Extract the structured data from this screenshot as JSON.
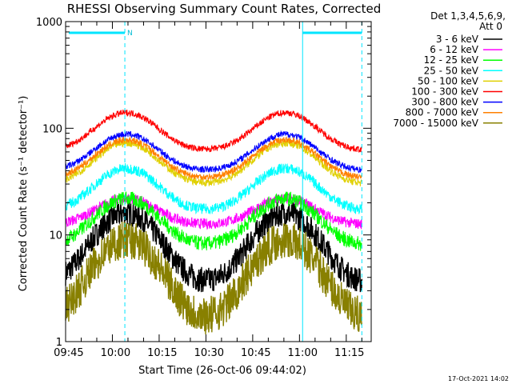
{
  "chart_data": {
    "type": "line",
    "title": "RHESSI Observing Summary Count Rates, Corrected",
    "xlabel": "Start Time (26-Oct-06 09:44:02)",
    "ylabel": "Corrected Count Rate (s⁻¹ detector⁻¹)",
    "yscale": "log",
    "ylim": [
      1,
      1000
    ],
    "xlim_minutes": [
      0,
      98
    ],
    "x_ticks": [
      "09:45",
      "10:00",
      "10:15",
      "10:30",
      "10:45",
      "11:00",
      "11:15"
    ],
    "y_ticks": [
      "1",
      "10",
      "100",
      "1000"
    ],
    "legend_header": [
      "Det 1,3,4,5,6,9,",
      "Att 0"
    ],
    "legend_position": "right",
    "timestamp": "17-Oct-2021 14:02",
    "annotations": {
      "night_bar_label": "N",
      "night_intervals_minutes": [
        [
          1,
          19
        ],
        [
          76,
          95
        ]
      ],
      "dashed_lines_minutes": [
        19,
        95
      ],
      "solid_lines_minutes": [
        0,
        76
      ]
    },
    "series": [
      {
        "name": "3 - 6 keV",
        "color": "#000000",
        "base": 3.5,
        "peak": 16,
        "noise": 0.12
      },
      {
        "name": "6 - 12 keV",
        "color": "#ff00ff",
        "base": 12.5,
        "peak": 22,
        "noise": 0.05
      },
      {
        "name": "12 - 25 keV",
        "color": "#00ff00",
        "base": 8,
        "peak": 22,
        "noise": 0.07
      },
      {
        "name": "25 - 50 keV",
        "color": "#00ffff",
        "base": 17,
        "peak": 42,
        "noise": 0.05
      },
      {
        "name": "50 - 100 keV",
        "color": "#e0d000",
        "base": 30,
        "peak": 73,
        "noise": 0.035
      },
      {
        "name": "100 - 300 keV",
        "color": "#ff0000",
        "base": 62,
        "peak": 140,
        "noise": 0.03
      },
      {
        "name": "300 - 800 keV",
        "color": "#0000ff",
        "base": 40,
        "peak": 88,
        "noise": 0.03
      },
      {
        "name": "800 - 7000 keV",
        "color": "#ff8000",
        "base": 34,
        "peak": 78,
        "noise": 0.03
      },
      {
        "name": "7000 - 15000 keV",
        "color": "#888000",
        "base": 1.6,
        "peak": 9,
        "noise": 0.18
      }
    ]
  }
}
